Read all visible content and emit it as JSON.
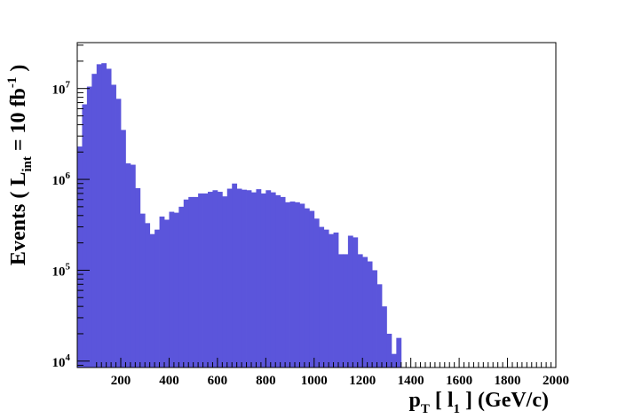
{
  "chart_data": {
    "type": "bar",
    "title": "",
    "xlabel": {
      "main": "p",
      "sub1": "T",
      "mid": " [ l",
      "sub2": "1",
      "tail": " ] (GeV/c)"
    },
    "ylabel": {
      "main": "Events  ( L",
      "sub": "int",
      "mid": " = 10 fb",
      "sup": "-1",
      "tail": " )"
    },
    "xlim": [
      20,
      2000
    ],
    "ylim": [
      8500,
      32000000
    ],
    "yscale": "log",
    "bin_width": 20,
    "x_ticks": [
      200,
      400,
      600,
      800,
      1000,
      1200,
      1400,
      1600,
      1800,
      2000
    ],
    "y_ticks": [
      {
        "value": 10000,
        "base": "10",
        "exp": "4"
      },
      {
        "value": 100000,
        "base": "10",
        "exp": "5"
      },
      {
        "value": 1000000,
        "base": "10",
        "exp": "6"
      },
      {
        "value": 10000000,
        "base": "10",
        "exp": "7"
      }
    ],
    "fill_color": "#5b55db",
    "grid": false,
    "bins_x_start": [
      20,
      40,
      60,
      80,
      100,
      120,
      140,
      160,
      180,
      200,
      220,
      240,
      260,
      280,
      300,
      320,
      340,
      360,
      380,
      400,
      420,
      440,
      460,
      480,
      500,
      520,
      540,
      560,
      580,
      600,
      620,
      640,
      660,
      680,
      700,
      720,
      740,
      760,
      780,
      800,
      820,
      840,
      860,
      880,
      900,
      920,
      940,
      960,
      980,
      1000,
      1020,
      1040,
      1060,
      1080,
      1100,
      1120,
      1140,
      1160,
      1180,
      1200,
      1220,
      1240,
      1260,
      1280,
      1300,
      1320,
      1340,
      1360,
      1380,
      1400,
      1420
    ],
    "values": [
      2300000,
      6700000,
      10500000,
      14500000,
      18500000,
      19000000,
      16500000,
      11000000,
      7700000,
      3500000,
      1500000,
      1450000,
      800000,
      420000,
      330000,
      250000,
      280000,
      390000,
      360000,
      440000,
      430000,
      500000,
      600000,
      640000,
      640000,
      700000,
      700000,
      730000,
      760000,
      730000,
      650000,
      790000,
      900000,
      790000,
      770000,
      760000,
      720000,
      780000,
      700000,
      760000,
      720000,
      670000,
      640000,
      560000,
      570000,
      560000,
      540000,
      480000,
      450000,
      370000,
      300000,
      280000,
      250000,
      260000,
      150000,
      150000,
      240000,
      230000,
      150000,
      140000,
      125000,
      100000,
      70000,
      40000,
      20000,
      12000,
      18000,
      0,
      0,
      0,
      0
    ]
  }
}
